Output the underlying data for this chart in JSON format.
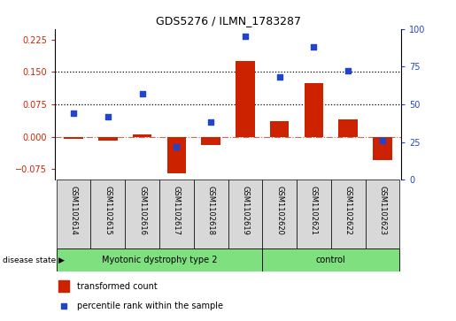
{
  "title": "GDS5276 / ILMN_1783287",
  "samples": [
    "GSM1102614",
    "GSM1102615",
    "GSM1102616",
    "GSM1102617",
    "GSM1102618",
    "GSM1102619",
    "GSM1102620",
    "GSM1102621",
    "GSM1102622",
    "GSM1102623"
  ],
  "bar_values": [
    -0.005,
    -0.01,
    0.005,
    -0.085,
    -0.02,
    0.175,
    0.035,
    0.125,
    0.04,
    -0.055
  ],
  "scatter_values": [
    44,
    42,
    57,
    22,
    38,
    95,
    68,
    88,
    72,
    26
  ],
  "bar_color": "#cc2200",
  "scatter_color": "#2244cc",
  "ylim_left": [
    -0.1,
    0.25
  ],
  "ylim_right": [
    0,
    100
  ],
  "yticks_left": [
    -0.075,
    0,
    0.075,
    0.15,
    0.225
  ],
  "yticks_right": [
    0,
    25,
    50,
    75,
    100
  ],
  "hlines": [
    0.075,
    0.15
  ],
  "group1_label": "Myotonic dystrophy type 2",
  "group2_label": "control",
  "group1_count": 6,
  "disease_label": "disease state",
  "legend_bar": "transformed count",
  "legend_scatter": "percentile rank within the sample",
  "sample_bg_color": "#d8d8d8",
  "group_color": "#7ee07e",
  "fig_bg": "#ffffff",
  "title_fontsize": 9,
  "tick_fontsize": 7,
  "label_fontsize": 6,
  "group_fontsize": 7,
  "legend_fontsize": 7,
  "bar_width": 0.55
}
